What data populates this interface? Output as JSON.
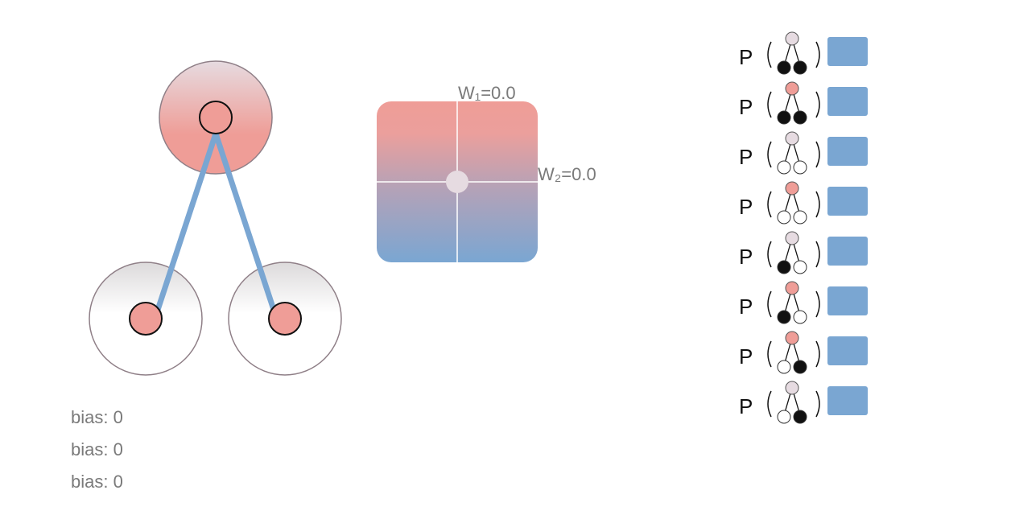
{
  "network": {
    "nodes": [
      "top",
      "bottom-left",
      "bottom-right"
    ],
    "weights": {
      "w1": "0.0",
      "w2": "0.0"
    },
    "colors": {
      "active": "#ef9d97",
      "edge": "#7aa6d2",
      "ring": "#8f7f87"
    }
  },
  "biases": [
    {
      "label": "bias:",
      "value": "0"
    },
    {
      "label": "bias:",
      "value": "0"
    },
    {
      "label": "bias:",
      "value": "0"
    }
  ],
  "weight_panel": {
    "w1_label": "W₁=0.0",
    "w2_label": "W₂=0.0"
  },
  "probabilities": {
    "symbol": "P",
    "rows": [
      {
        "top": "off",
        "left": "black",
        "right": "black",
        "value": 1
      },
      {
        "top": "on",
        "left": "black",
        "right": "black",
        "value": 1
      },
      {
        "top": "off",
        "left": "white",
        "right": "white",
        "value": 1
      },
      {
        "top": "on",
        "left": "white",
        "right": "white",
        "value": 1
      },
      {
        "top": "off",
        "left": "black",
        "right": "white",
        "value": 1
      },
      {
        "top": "on",
        "left": "black",
        "right": "white",
        "value": 1
      },
      {
        "top": "on",
        "left": "white",
        "right": "black",
        "value": 1
      },
      {
        "top": "off",
        "left": "white",
        "right": "black",
        "value": 1
      }
    ]
  }
}
